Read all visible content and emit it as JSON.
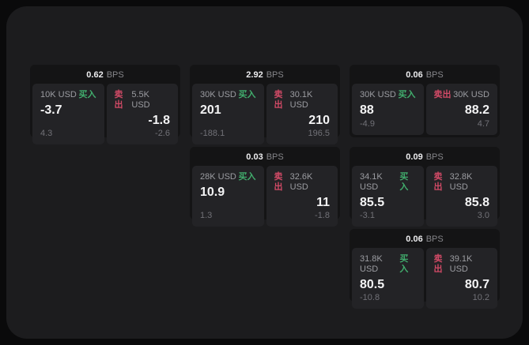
{
  "labels": {
    "bps_unit": "BPS",
    "buy": "买入",
    "sell": "卖出"
  },
  "colors": {
    "buy_green": "#41ad6d",
    "sell_red": "#d04a66",
    "window_bg": "#1c1c1e",
    "card_bg": "#141415",
    "tile_bg": "#232326"
  },
  "cards": [
    {
      "bps": "0.62",
      "buy": {
        "amount": "10K USD",
        "price": "-3.7",
        "change": "4.3"
      },
      "sell": {
        "amount": "5.5K USD",
        "price": "-1.8",
        "change": "-2.6"
      }
    },
    {
      "bps": "2.92",
      "buy": {
        "amount": "30K USD",
        "price": "201",
        "change": "-188.1"
      },
      "sell": {
        "amount": "30.1K USD",
        "price": "210",
        "change": "196.5"
      }
    },
    {
      "bps": "0.06",
      "buy": {
        "amount": "30K USD",
        "price": "88",
        "change": "-4.9"
      },
      "sell": {
        "amount": "30K USD",
        "price": "88.2",
        "change": "4.7"
      }
    },
    {
      "bps": "0.03",
      "buy": {
        "amount": "28K USD",
        "price": "10.9",
        "change": "1.3"
      },
      "sell": {
        "amount": "32.6K USD",
        "price": "11",
        "change": "-1.8"
      }
    },
    {
      "bps": "0.09",
      "buy": {
        "amount": "34.1K USD",
        "price": "85.5",
        "change": "-3.1"
      },
      "sell": {
        "amount": "32.8K USD",
        "price": "85.8",
        "change": "3.0"
      }
    },
    {
      "bps": "0.06",
      "buy": {
        "amount": "31.8K USD",
        "price": "80.5",
        "change": "-10.8"
      },
      "sell": {
        "amount": "39.1K USD",
        "price": "80.7",
        "change": "10.2"
      }
    }
  ]
}
